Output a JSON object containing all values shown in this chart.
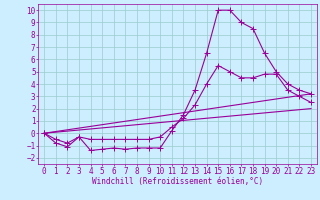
{
  "background_color": "#cceeff",
  "grid_color": "#99cccc",
  "line_color": "#990099",
  "xlim": [
    -0.5,
    23.5
  ],
  "ylim": [
    -2.5,
    10.5
  ],
  "xticks": [
    0,
    1,
    2,
    3,
    4,
    5,
    6,
    7,
    8,
    9,
    10,
    11,
    12,
    13,
    14,
    15,
    16,
    17,
    18,
    19,
    20,
    21,
    22,
    23
  ],
  "yticks": [
    -2,
    -1,
    0,
    1,
    2,
    3,
    4,
    5,
    6,
    7,
    8,
    9,
    10
  ],
  "xlabel": "Windchill (Refroidissement éolien,°C)",
  "line1_x": [
    0,
    1,
    2,
    3,
    4,
    5,
    6,
    7,
    8,
    9,
    10,
    11,
    12,
    13,
    14,
    15,
    16,
    17,
    18,
    19,
    20,
    21,
    22,
    23
  ],
  "line1_y": [
    0.0,
    -0.8,
    -1.1,
    -0.3,
    -1.4,
    -1.3,
    -1.2,
    -1.3,
    -1.2,
    -1.2,
    -1.2,
    0.2,
    1.5,
    3.5,
    6.5,
    10.0,
    10.0,
    9.0,
    8.5,
    6.5,
    5.0,
    4.0,
    3.5,
    3.2
  ],
  "line2_x": [
    0,
    1,
    2,
    3,
    4,
    5,
    6,
    7,
    8,
    9,
    10,
    11,
    12,
    13,
    14,
    15,
    16,
    17,
    18,
    19,
    20,
    21,
    22,
    23
  ],
  "line2_y": [
    0.0,
    -0.5,
    -0.8,
    -0.3,
    -0.5,
    -0.5,
    -0.5,
    -0.5,
    -0.5,
    -0.5,
    -0.3,
    0.5,
    1.2,
    2.3,
    4.0,
    5.5,
    5.0,
    4.5,
    4.5,
    4.8,
    4.8,
    3.5,
    3.0,
    2.5
  ],
  "line3_x": [
    0,
    23
  ],
  "line3_y": [
    0.0,
    3.2
  ],
  "line4_x": [
    0,
    23
  ],
  "line4_y": [
    0.0,
    2.0
  ],
  "tick_fontsize": 5.5,
  "xlabel_fontsize": 5.5,
  "font": "monospace",
  "marker_size": 1.8,
  "linewidth": 0.8
}
